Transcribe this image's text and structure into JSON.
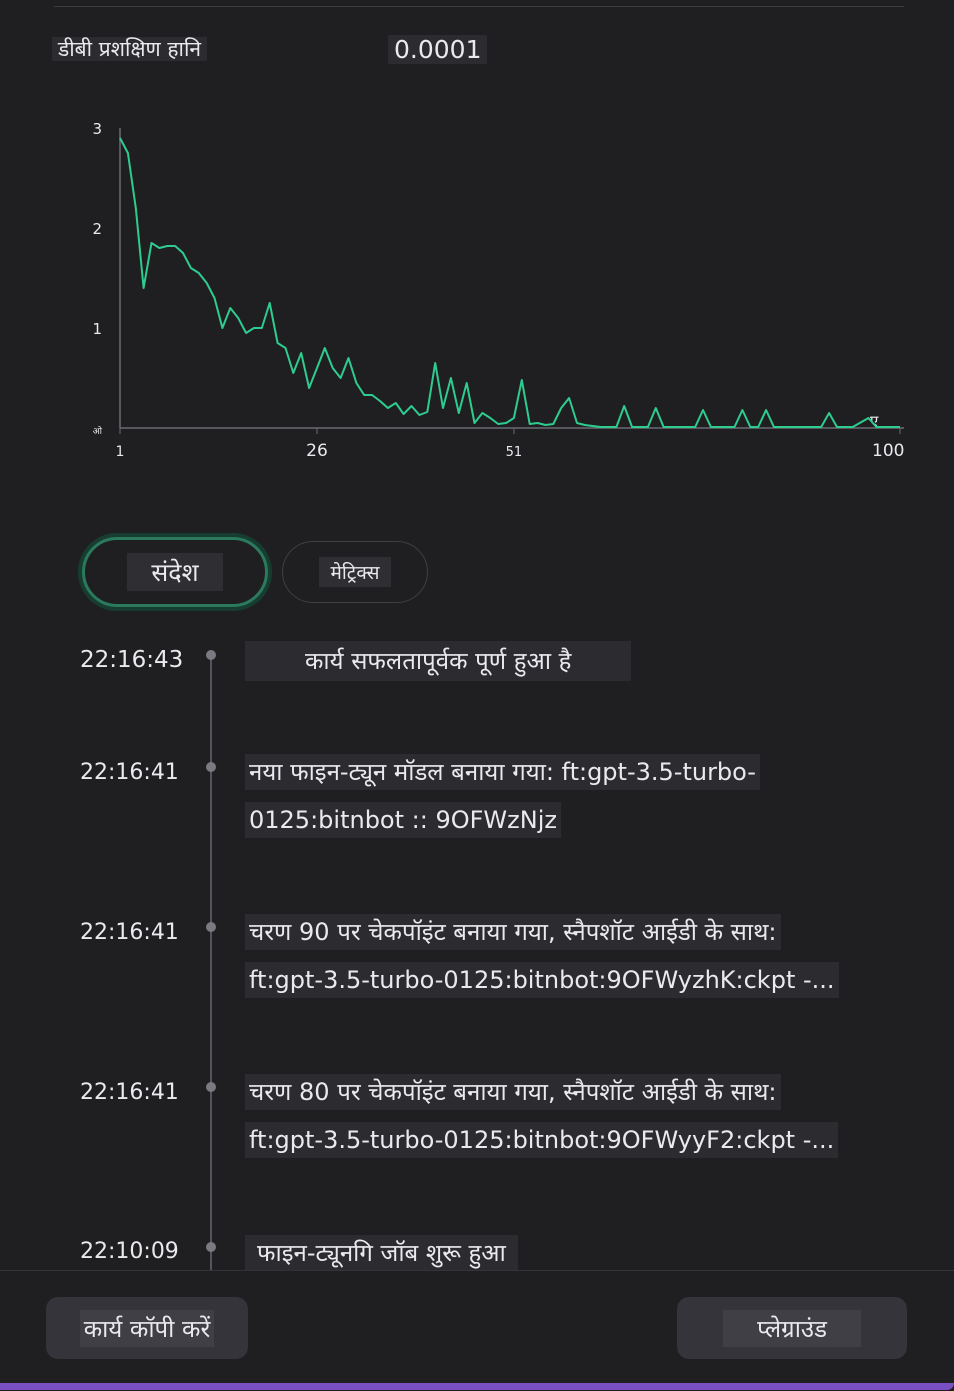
{
  "metric": {
    "label": "डीबी प्रशक्षिण हानि",
    "value": "0.0001"
  },
  "chart_data": {
    "type": "line",
    "ylabel": "",
    "xlabel": "",
    "y_ticks": [
      "3",
      "2",
      "1",
      "ओ"
    ],
    "x_ticks": [
      "1",
      "26",
      "51",
      "100"
    ],
    "x_end_label": "ए",
    "ylim": [
      0,
      3
    ],
    "xlim": [
      1,
      100
    ],
    "series": [
      {
        "color": "#2ecc8f",
        "points": [
          [
            1,
            2.9
          ],
          [
            2,
            2.75
          ],
          [
            3,
            2.2
          ],
          [
            4,
            1.4
          ],
          [
            5,
            1.85
          ],
          [
            6,
            1.8
          ],
          [
            7,
            1.82
          ],
          [
            8,
            1.82
          ],
          [
            9,
            1.75
          ],
          [
            10,
            1.6
          ],
          [
            11,
            1.55
          ],
          [
            12,
            1.45
          ],
          [
            13,
            1.3
          ],
          [
            14,
            1.0
          ],
          [
            15,
            1.2
          ],
          [
            16,
            1.1
          ],
          [
            17,
            0.95
          ],
          [
            18,
            1.0
          ],
          [
            19,
            1.0
          ],
          [
            20,
            1.25
          ],
          [
            21,
            0.85
          ],
          [
            22,
            0.8
          ],
          [
            23,
            0.55
          ],
          [
            24,
            0.75
          ],
          [
            25,
            0.4
          ],
          [
            26,
            0.6
          ],
          [
            27,
            0.8
          ],
          [
            28,
            0.6
          ],
          [
            29,
            0.5
          ],
          [
            30,
            0.7
          ],
          [
            31,
            0.45
          ],
          [
            32,
            0.33
          ],
          [
            33,
            0.33
          ],
          [
            34,
            0.27
          ],
          [
            35,
            0.2
          ],
          [
            36,
            0.25
          ],
          [
            37,
            0.14
          ],
          [
            38,
            0.22
          ],
          [
            39,
            0.13
          ],
          [
            40,
            0.16
          ],
          [
            41,
            0.65
          ],
          [
            42,
            0.2
          ],
          [
            43,
            0.5
          ],
          [
            44,
            0.15
          ],
          [
            45,
            0.45
          ],
          [
            46,
            0.05
          ],
          [
            47,
            0.15
          ],
          [
            48,
            0.1
          ],
          [
            49,
            0.04
          ],
          [
            50,
            0.05
          ],
          [
            51,
            0.1
          ],
          [
            52,
            0.48
          ],
          [
            53,
            0.04
          ],
          [
            54,
            0.05
          ],
          [
            55,
            0.03
          ],
          [
            56,
            0.04
          ],
          [
            57,
            0.2
          ],
          [
            58,
            0.3
          ],
          [
            59,
            0.05
          ],
          [
            60,
            0.03
          ],
          [
            62,
            0.01
          ],
          [
            64,
            0.01
          ],
          [
            65,
            0.22
          ],
          [
            66,
            0.01
          ],
          [
            68,
            0.01
          ],
          [
            69,
            0.2
          ],
          [
            70,
            0.01
          ],
          [
            72,
            0.01
          ],
          [
            74,
            0.01
          ],
          [
            75,
            0.18
          ],
          [
            76,
            0.01
          ],
          [
            79,
            0.01
          ],
          [
            80,
            0.18
          ],
          [
            81,
            0.01
          ],
          [
            82,
            0.01
          ],
          [
            83,
            0.18
          ],
          [
            84,
            0.01
          ],
          [
            88,
            0.01
          ],
          [
            90,
            0.01
          ],
          [
            91,
            0.15
          ],
          [
            92,
            0.01
          ],
          [
            94,
            0.01
          ],
          [
            96,
            0.1
          ],
          [
            97,
            0.01
          ],
          [
            100,
            0.01
          ]
        ]
      }
    ]
  },
  "tabs": {
    "messages": "संदेश",
    "metrics": "मेट्रिक्स"
  },
  "events": [
    {
      "time": "22:16:43",
      "line1": "कार्य सफलतापूर्वक पूर्ण हुआ है",
      "line2": ""
    },
    {
      "time": "22:16:41",
      "line1": "नया फाइन-ट्यून मॉडल बनाया गया: ft:gpt-3.5-turbo-",
      "line2": "0125:bitnbot :: 9OFWzNjz"
    },
    {
      "time": "22:16:41",
      "line1": "चरण 90 पर चेकपॉइंट बनाया गया, स्नैपशॉट आईडी के साथ:",
      "line2": "ft:gpt-3.5-turbo-0125:bitnbot:9OFWyzhK:ckpt -..."
    },
    {
      "time": "22:16:41",
      "line1": "चरण 80 पर चेकपॉइंट बनाया गया, स्नैपशॉट आईडी के साथ:",
      "line2": "ft:gpt-3.5-turbo-0125:bitnbot:9OFWyyF2:ckpt -..."
    },
    {
      "time": "22:10:09",
      "line1": "फाइन-ट्यूनगि जॉब शुरू हुआ",
      "line2": ""
    }
  ],
  "footer": {
    "copy": "कार्य कॉपी करें",
    "playground": "प्लेग्राउंड"
  }
}
